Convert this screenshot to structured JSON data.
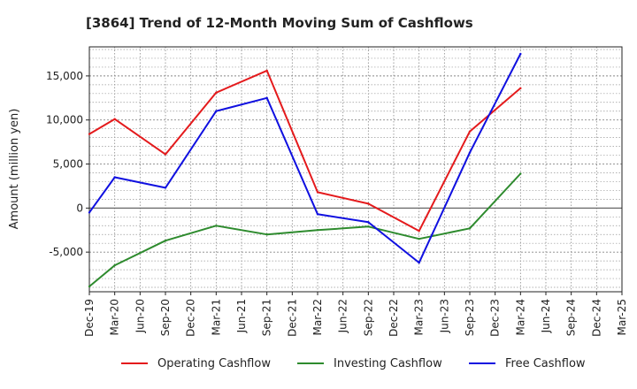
{
  "chart_data": {
    "type": "line",
    "title": "[3864]  Trend of 12-Month Moving Sum of Cashflows",
    "xlabel": "",
    "ylabel": "Amount (million yen)",
    "categories": [
      "Dec-19",
      "Mar-20",
      "Jun-20",
      "Sep-20",
      "Dec-20",
      "Mar-21",
      "Jun-21",
      "Sep-21",
      "Dec-21",
      "Mar-22",
      "Jun-22",
      "Sep-22",
      "Dec-22",
      "Mar-23",
      "Jun-23",
      "Sep-23",
      "Dec-23",
      "Mar-24",
      "Jun-24",
      "Sep-24",
      "Dec-24",
      "Mar-25"
    ],
    "ylim": [
      -9500,
      18300
    ],
    "yticks": [
      -5000,
      0,
      5000,
      10000,
      15000
    ],
    "ytick_labels": [
      "-5,000",
      "0",
      "5,000",
      "10,000",
      "15,000"
    ],
    "grid": true,
    "legend_position": "bottom",
    "series": [
      {
        "name": "Operating Cashflow",
        "color": "#e41a1c",
        "x": [
          "Dec-19",
          "Mar-20",
          "Sep-20",
          "Mar-21",
          "Sep-21",
          "Mar-22",
          "Sep-22",
          "Mar-23",
          "Sep-23",
          "Mar-24"
        ],
        "values": [
          8400,
          10100,
          6100,
          13100,
          15600,
          1800,
          500,
          -2600,
          8700,
          13600
        ]
      },
      {
        "name": "Investing Cashflow",
        "color": "#2e8b2e",
        "x": [
          "Dec-19",
          "Mar-20",
          "Sep-20",
          "Mar-21",
          "Sep-21",
          "Mar-22",
          "Sep-22",
          "Mar-23",
          "Sep-23",
          "Mar-24"
        ],
        "values": [
          -8900,
          -6500,
          -3700,
          -2000,
          -3000,
          -2500,
          -2100,
          -3500,
          -2300,
          3900
        ]
      },
      {
        "name": "Free Cashflow",
        "color": "#1010e0",
        "x": [
          "Dec-19",
          "Mar-20",
          "Sep-20",
          "Mar-21",
          "Sep-21",
          "Mar-22",
          "Sep-22",
          "Mar-23",
          "Sep-23",
          "Mar-24"
        ],
        "values": [
          -500,
          3500,
          2300,
          11000,
          12500,
          -700,
          -1600,
          -6200,
          6300,
          17500
        ]
      }
    ]
  }
}
